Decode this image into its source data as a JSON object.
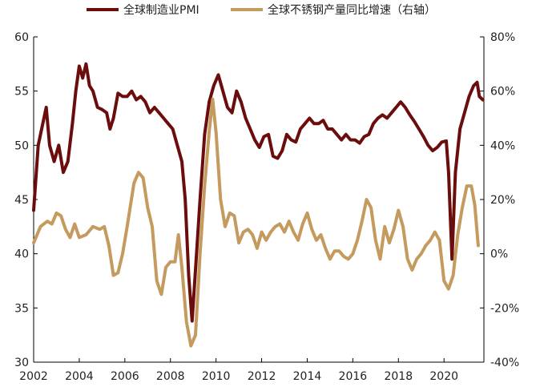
{
  "chart_data": {
    "type": "line",
    "title": "",
    "xlabel": "",
    "ylabel_left": "",
    "ylabel_right": "",
    "xlim": [
      2002,
      2021.75
    ],
    "x_ticks": [
      "2002",
      "2004",
      "2006",
      "2008",
      "2010",
      "2012",
      "2014",
      "2016",
      "2018",
      "2020"
    ],
    "ylim_left": [
      30,
      60
    ],
    "y_ticks_left": [
      "30",
      "35",
      "40",
      "45",
      "50",
      "55",
      "60"
    ],
    "ylim_right": [
      -40,
      80
    ],
    "y_ticks_right": [
      "-40%",
      "-20%",
      "0%",
      "20%",
      "40%",
      "60%",
      "80%"
    ],
    "grid": false,
    "legend_position": "top",
    "series": [
      {
        "name": "全球制造业PMI",
        "axis": "left",
        "color": "#6b0d0d",
        "points": [
          [
            2002.0,
            44.0
          ],
          [
            2002.2,
            50.0
          ],
          [
            2002.4,
            52.0
          ],
          [
            2002.55,
            53.5
          ],
          [
            2002.7,
            50.0
          ],
          [
            2002.9,
            48.5
          ],
          [
            2003.1,
            50.0
          ],
          [
            2003.3,
            47.5
          ],
          [
            2003.5,
            48.5
          ],
          [
            2003.7,
            52.0
          ],
          [
            2003.85,
            55.0
          ],
          [
            2004.0,
            57.3
          ],
          [
            2004.15,
            56.2
          ],
          [
            2004.3,
            57.5
          ],
          [
            2004.45,
            55.5
          ],
          [
            2004.6,
            55.0
          ],
          [
            2004.8,
            53.5
          ],
          [
            2005.0,
            53.3
          ],
          [
            2005.2,
            53.0
          ],
          [
            2005.35,
            51.5
          ],
          [
            2005.5,
            52.5
          ],
          [
            2005.7,
            54.8
          ],
          [
            2005.9,
            54.5
          ],
          [
            2006.1,
            54.5
          ],
          [
            2006.3,
            55.0
          ],
          [
            2006.5,
            54.2
          ],
          [
            2006.7,
            54.5
          ],
          [
            2006.9,
            54.0
          ],
          [
            2007.1,
            53.0
          ],
          [
            2007.3,
            53.5
          ],
          [
            2007.5,
            53.0
          ],
          [
            2007.7,
            52.5
          ],
          [
            2007.9,
            52.0
          ],
          [
            2008.1,
            51.5
          ],
          [
            2008.3,
            50.0
          ],
          [
            2008.5,
            48.5
          ],
          [
            2008.65,
            45.0
          ],
          [
            2008.8,
            38.0
          ],
          [
            2008.95,
            33.8
          ],
          [
            2009.1,
            38.5
          ],
          [
            2009.3,
            45.0
          ],
          [
            2009.5,
            51.0
          ],
          [
            2009.7,
            54.0
          ],
          [
            2009.9,
            55.5
          ],
          [
            2010.1,
            56.5
          ],
          [
            2010.3,
            55.0
          ],
          [
            2010.5,
            53.5
          ],
          [
            2010.7,
            53.0
          ],
          [
            2010.9,
            55.0
          ],
          [
            2011.1,
            54.0
          ],
          [
            2011.3,
            52.5
          ],
          [
            2011.5,
            51.5
          ],
          [
            2011.7,
            50.5
          ],
          [
            2011.9,
            49.8
          ],
          [
            2012.1,
            50.8
          ],
          [
            2012.3,
            51.0
          ],
          [
            2012.5,
            49.0
          ],
          [
            2012.7,
            48.8
          ],
          [
            2012.9,
            49.5
          ],
          [
            2013.1,
            51.0
          ],
          [
            2013.3,
            50.5
          ],
          [
            2013.5,
            50.3
          ],
          [
            2013.7,
            51.5
          ],
          [
            2013.9,
            52.0
          ],
          [
            2014.1,
            52.5
          ],
          [
            2014.3,
            52.0
          ],
          [
            2014.5,
            52.0
          ],
          [
            2014.7,
            52.3
          ],
          [
            2014.9,
            51.5
          ],
          [
            2015.1,
            51.5
          ],
          [
            2015.3,
            51.0
          ],
          [
            2015.5,
            50.5
          ],
          [
            2015.7,
            51.0
          ],
          [
            2015.9,
            50.5
          ],
          [
            2016.1,
            50.5
          ],
          [
            2016.3,
            50.2
          ],
          [
            2016.5,
            50.8
          ],
          [
            2016.7,
            51.0
          ],
          [
            2016.9,
            52.0
          ],
          [
            2017.1,
            52.5
          ],
          [
            2017.3,
            52.8
          ],
          [
            2017.5,
            52.5
          ],
          [
            2017.7,
            53.0
          ],
          [
            2017.9,
            53.5
          ],
          [
            2018.1,
            54.0
          ],
          [
            2018.3,
            53.5
          ],
          [
            2018.5,
            52.8
          ],
          [
            2018.7,
            52.2
          ],
          [
            2018.9,
            51.5
          ],
          [
            2019.1,
            50.8
          ],
          [
            2019.3,
            50.0
          ],
          [
            2019.5,
            49.5
          ],
          [
            2019.7,
            49.8
          ],
          [
            2019.9,
            50.3
          ],
          [
            2020.1,
            50.4
          ],
          [
            2020.2,
            47.5
          ],
          [
            2020.35,
            39.5
          ],
          [
            2020.5,
            47.5
          ],
          [
            2020.7,
            51.5
          ],
          [
            2020.9,
            53.0
          ],
          [
            2021.1,
            54.5
          ],
          [
            2021.3,
            55.5
          ],
          [
            2021.45,
            55.8
          ],
          [
            2021.55,
            54.5
          ],
          [
            2021.7,
            54.2
          ]
        ]
      },
      {
        "name": "全球不锈钢产量同比增速（右轴）",
        "axis": "right",
        "color": "#c49a5e",
        "points": [
          [
            2002.0,
            4.0
          ],
          [
            2002.3,
            10.0
          ],
          [
            2002.6,
            12.0
          ],
          [
            2002.8,
            11.0
          ],
          [
            2003.0,
            15.0
          ],
          [
            2003.2,
            14.0
          ],
          [
            2003.4,
            9.0
          ],
          [
            2003.6,
            6.0
          ],
          [
            2003.8,
            11.0
          ],
          [
            2004.0,
            6.0
          ],
          [
            2004.3,
            7.0
          ],
          [
            2004.6,
            10.0
          ],
          [
            2004.9,
            9.0
          ],
          [
            2005.1,
            10.0
          ],
          [
            2005.3,
            3.0
          ],
          [
            2005.5,
            -8.0
          ],
          [
            2005.7,
            -7.0
          ],
          [
            2005.9,
            0.0
          ],
          [
            2006.1,
            10.0
          ],
          [
            2006.4,
            26.0
          ],
          [
            2006.6,
            30.0
          ],
          [
            2006.8,
            28.0
          ],
          [
            2007.0,
            17.0
          ],
          [
            2007.2,
            10.0
          ],
          [
            2007.4,
            -10.0
          ],
          [
            2007.6,
            -15.0
          ],
          [
            2007.8,
            -5.0
          ],
          [
            2008.0,
            -3.0
          ],
          [
            2008.2,
            -3.0
          ],
          [
            2008.35,
            7.0
          ],
          [
            2008.5,
            -5.0
          ],
          [
            2008.7,
            -25.0
          ],
          [
            2008.9,
            -34.0
          ],
          [
            2009.1,
            -30.0
          ],
          [
            2009.3,
            0.0
          ],
          [
            2009.5,
            25.0
          ],
          [
            2009.7,
            45.0
          ],
          [
            2009.85,
            57.0
          ],
          [
            2010.0,
            45.0
          ],
          [
            2010.2,
            20.0
          ],
          [
            2010.4,
            10.0
          ],
          [
            2010.6,
            15.0
          ],
          [
            2010.8,
            14.0
          ],
          [
            2011.0,
            4.0
          ],
          [
            2011.2,
            8.0
          ],
          [
            2011.4,
            9.0
          ],
          [
            2011.6,
            7.0
          ],
          [
            2011.8,
            2.0
          ],
          [
            2012.0,
            8.0
          ],
          [
            2012.2,
            5.0
          ],
          [
            2012.4,
            8.0
          ],
          [
            2012.6,
            10.0
          ],
          [
            2012.8,
            11.0
          ],
          [
            2013.0,
            8.0
          ],
          [
            2013.2,
            12.0
          ],
          [
            2013.4,
            8.0
          ],
          [
            2013.6,
            5.0
          ],
          [
            2013.8,
            11.0
          ],
          [
            2014.0,
            15.0
          ],
          [
            2014.2,
            9.0
          ],
          [
            2014.4,
            5.0
          ],
          [
            2014.6,
            7.0
          ],
          [
            2014.8,
            2.0
          ],
          [
            2015.0,
            -2.0
          ],
          [
            2015.2,
            1.0
          ],
          [
            2015.4,
            1.0
          ],
          [
            2015.6,
            -1.0
          ],
          [
            2015.8,
            -2.0
          ],
          [
            2016.0,
            0.0
          ],
          [
            2016.2,
            5.0
          ],
          [
            2016.4,
            12.0
          ],
          [
            2016.6,
            20.0
          ],
          [
            2016.8,
            17.0
          ],
          [
            2017.0,
            5.0
          ],
          [
            2017.2,
            -2.0
          ],
          [
            2017.4,
            10.0
          ],
          [
            2017.6,
            4.0
          ],
          [
            2017.8,
            9.0
          ],
          [
            2018.0,
            16.0
          ],
          [
            2018.2,
            10.0
          ],
          [
            2018.4,
            -2.0
          ],
          [
            2018.6,
            -6.0
          ],
          [
            2018.8,
            -2.0
          ],
          [
            2019.0,
            0.0
          ],
          [
            2019.2,
            3.0
          ],
          [
            2019.4,
            5.0
          ],
          [
            2019.6,
            8.0
          ],
          [
            2019.8,
            5.0
          ],
          [
            2020.0,
            -10.0
          ],
          [
            2020.2,
            -13.0
          ],
          [
            2020.4,
            -8.0
          ],
          [
            2020.6,
            7.0
          ],
          [
            2020.8,
            17.0
          ],
          [
            2021.0,
            25.0
          ],
          [
            2021.2,
            25.0
          ],
          [
            2021.35,
            18.0
          ],
          [
            2021.5,
            3.0
          ]
        ]
      }
    ]
  }
}
